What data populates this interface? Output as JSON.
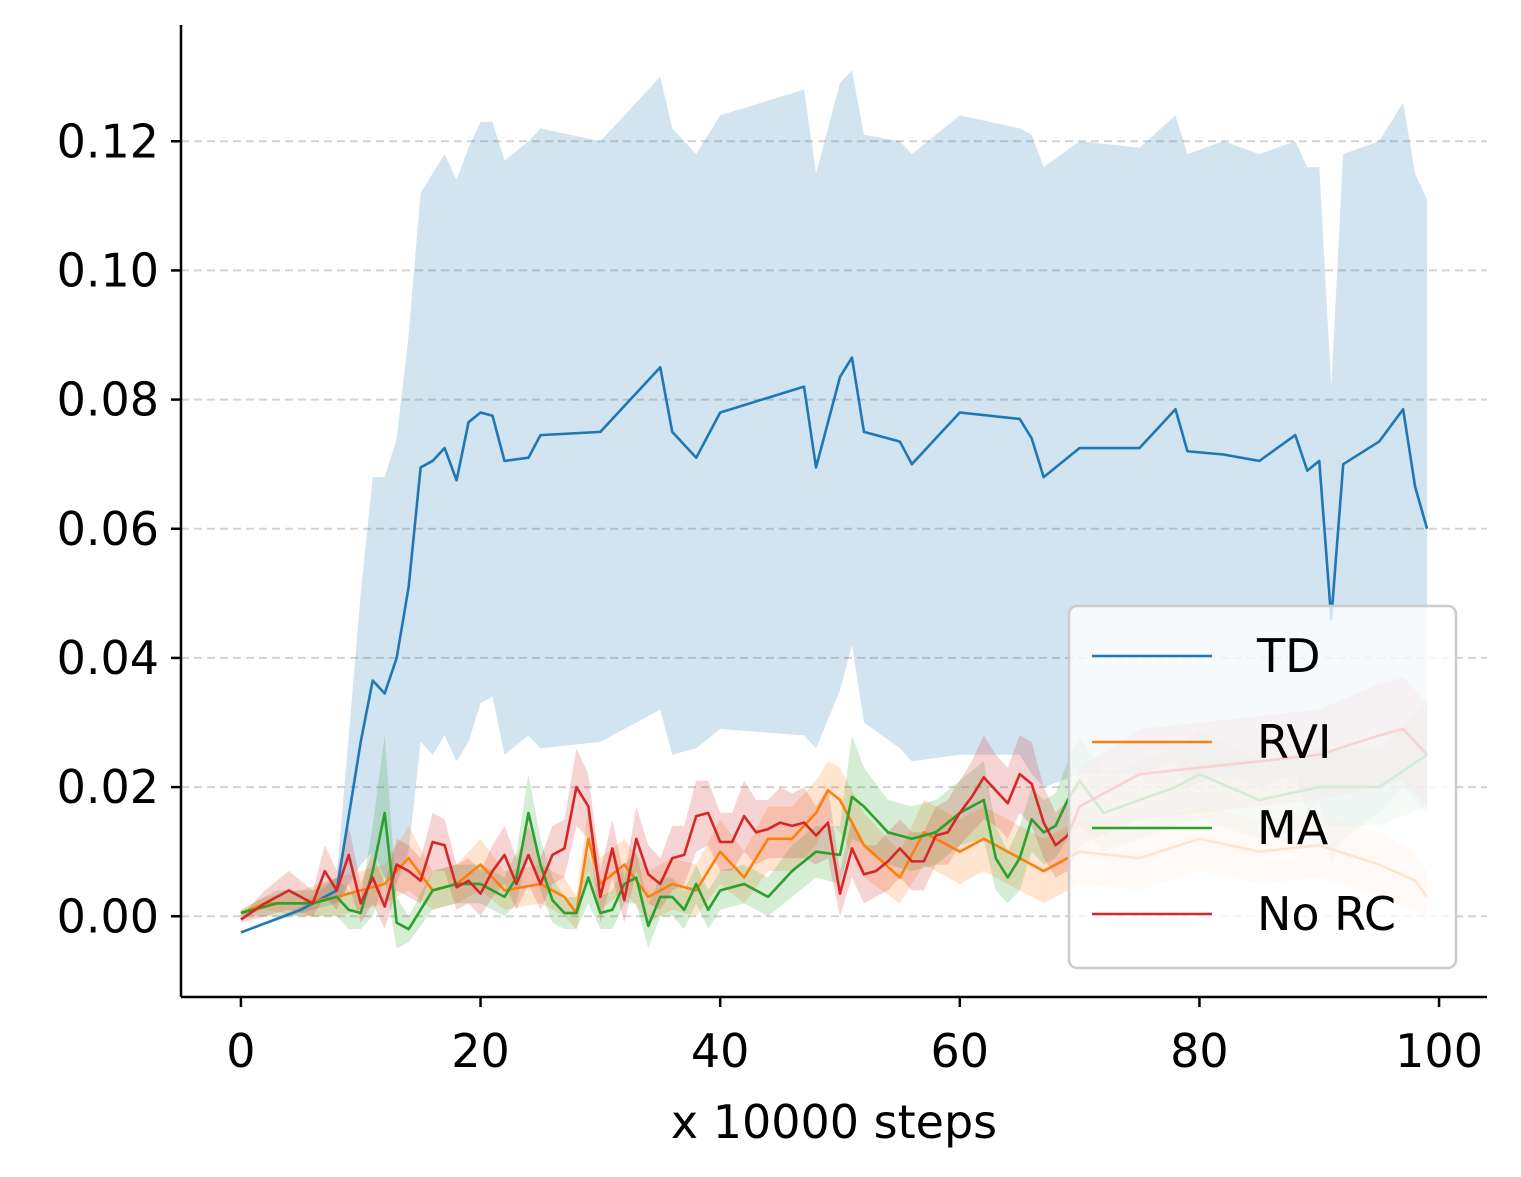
{
  "chart_data": {
    "type": "line",
    "title": "",
    "xlabel": "x 10000 steps",
    "ylabel": "",
    "xlim": [
      -5,
      104
    ],
    "ylim": [
      -0.0125,
      0.138
    ],
    "xticks": [
      0,
      20,
      40,
      60,
      80,
      100
    ],
    "xtick_labels": [
      "0",
      "20",
      "40",
      "60",
      "80",
      "100"
    ],
    "yticks": [
      0,
      0.02,
      0.04,
      0.06,
      0.08,
      0.1,
      0.12
    ],
    "ytick_labels": [
      "0.00",
      "0.02",
      "0.04",
      "0.06",
      "0.08",
      "0.10",
      "0.12"
    ],
    "grid": "horizontal dashed",
    "legend_position": "lower-right",
    "series": [
      {
        "name": "TD",
        "color": "#1f77b4",
        "x": [
          0,
          5,
          8,
          10,
          11,
          12,
          13,
          14,
          15,
          16,
          17,
          18,
          19,
          20,
          21,
          22,
          24,
          25,
          30,
          35,
          36,
          38,
          40,
          47,
          48,
          50,
          51,
          52,
          55,
          56,
          60,
          65,
          66,
          67,
          70,
          75,
          78,
          79,
          82,
          85,
          88,
          89,
          90,
          91,
          92,
          95,
          97,
          98,
          99
        ],
        "values": [
          -0.0025,
          0.001,
          0.004,
          0.027,
          0.0365,
          0.0345,
          0.04,
          0.051,
          0.0695,
          0.0705,
          0.0725,
          0.0675,
          0.0765,
          0.078,
          0.0775,
          0.0705,
          0.071,
          0.0745,
          0.075,
          0.085,
          0.075,
          0.071,
          0.078,
          0.082,
          0.0695,
          0.0835,
          0.0865,
          0.075,
          0.0735,
          0.07,
          0.078,
          0.077,
          0.074,
          0.068,
          0.0725,
          0.0725,
          0.0785,
          0.072,
          0.0715,
          0.0705,
          0.0745,
          0.069,
          0.0705,
          0.046,
          0.07,
          0.0735,
          0.0785,
          0.0665,
          0.06
        ],
        "lower": [
          -0.0025,
          0.0005,
          0.002,
          0.008,
          0.01,
          0.006,
          0.005,
          0.01,
          0.027,
          0.025,
          0.028,
          0.024,
          0.027,
          0.033,
          0.034,
          0.025,
          0.028,
          0.026,
          0.027,
          0.032,
          0.025,
          0.026,
          0.029,
          0.028,
          0.026,
          0.035,
          0.042,
          0.03,
          0.026,
          0.024,
          0.025,
          0.025,
          0.022,
          0.02,
          0.022,
          0.022,
          0.024,
          0.02,
          0.022,
          0.02,
          0.022,
          0.016,
          0.018,
          0.008,
          0.012,
          0.016,
          0.02,
          0.018,
          0.016
        ],
        "upper": [
          -0.0025,
          0.0015,
          0.006,
          0.05,
          0.068,
          0.068,
          0.074,
          0.09,
          0.112,
          0.115,
          0.118,
          0.114,
          0.119,
          0.123,
          0.123,
          0.117,
          0.12,
          0.122,
          0.12,
          0.13,
          0.122,
          0.118,
          0.124,
          0.128,
          0.115,
          0.129,
          0.131,
          0.121,
          0.12,
          0.118,
          0.124,
          0.122,
          0.121,
          0.116,
          0.12,
          0.119,
          0.124,
          0.118,
          0.12,
          0.118,
          0.12,
          0.116,
          0.116,
          0.082,
          0.118,
          0.12,
          0.126,
          0.115,
          0.111
        ]
      },
      {
        "name": "RVI",
        "color": "#ff7f0e",
        "x": [
          0,
          2,
          5,
          8,
          10,
          12,
          14,
          16,
          18,
          20,
          22,
          25,
          27,
          28,
          29,
          30,
          32,
          34,
          36,
          38,
          40,
          42,
          44,
          46,
          48,
          49,
          50,
          52,
          55,
          57,
          60,
          62,
          65,
          67,
          70,
          75,
          80,
          85,
          90,
          95,
          98,
          99
        ],
        "values": [
          0.0005,
          0.002,
          0.002,
          0.003,
          0.004,
          0.005,
          0.009,
          0.004,
          0.005,
          0.008,
          0.004,
          0.005,
          0.003,
          0.0005,
          0.012,
          0.005,
          0.008,
          0.003,
          0.005,
          0.004,
          0.01,
          0.006,
          0.012,
          0.012,
          0.016,
          0.0195,
          0.018,
          0.011,
          0.006,
          0.013,
          0.01,
          0.012,
          0.009,
          0.007,
          0.01,
          0.009,
          0.012,
          0.01,
          0.011,
          0.008,
          0.0055,
          0.003
        ],
        "lower": [
          0.0,
          0.001,
          0.0,
          0.0,
          0.001,
          0.002,
          0.004,
          0.001,
          0.002,
          0.004,
          0.001,
          0.002,
          0.0,
          -0.002,
          0.007,
          0.001,
          0.004,
          -0.001,
          0.001,
          0.0,
          0.005,
          0.002,
          0.007,
          0.007,
          0.011,
          0.015,
          0.013,
          0.006,
          0.002,
          0.008,
          0.005,
          0.007,
          0.004,
          0.002,
          0.005,
          0.004,
          0.007,
          0.005,
          0.006,
          0.003,
          0.001,
          -0.001
        ],
        "upper": [
          0.001,
          0.003,
          0.004,
          0.006,
          0.007,
          0.008,
          0.014,
          0.007,
          0.008,
          0.012,
          0.007,
          0.008,
          0.006,
          0.003,
          0.017,
          0.009,
          0.012,
          0.007,
          0.009,
          0.008,
          0.015,
          0.01,
          0.017,
          0.017,
          0.021,
          0.024,
          0.023,
          0.016,
          0.01,
          0.018,
          0.015,
          0.017,
          0.014,
          0.012,
          0.015,
          0.014,
          0.017,
          0.015,
          0.016,
          0.013,
          0.01,
          0.007
        ]
      },
      {
        "name": "MA",
        "color": "#2ca02c",
        "x": [
          0,
          3,
          6,
          8,
          9,
          10,
          11,
          12,
          13,
          14,
          16,
          18,
          20,
          22,
          23,
          24,
          25,
          26,
          27,
          28,
          29,
          30,
          31,
          32,
          33,
          34,
          35,
          36,
          37,
          38,
          39,
          40,
          42,
          44,
          46,
          48,
          50,
          51,
          52,
          54,
          56,
          58,
          60,
          62,
          63,
          64,
          65,
          66,
          67,
          68,
          69,
          70,
          72,
          75,
          78,
          80,
          85,
          90,
          95,
          99
        ],
        "values": [
          0.0005,
          0.002,
          0.002,
          0.003,
          0.001,
          0.0005,
          0.007,
          0.016,
          -0.001,
          -0.002,
          0.004,
          0.005,
          0.005,
          0.003,
          0.006,
          0.016,
          0.008,
          0.0025,
          0.0005,
          0.0005,
          0.006,
          0.0005,
          0.001,
          0.005,
          0.006,
          -0.0015,
          0.003,
          0.003,
          0.001,
          0.005,
          0.001,
          0.004,
          0.005,
          0.003,
          0.007,
          0.01,
          0.0095,
          0.0185,
          0.017,
          0.013,
          0.012,
          0.013,
          0.016,
          0.018,
          0.009,
          0.006,
          0.009,
          0.015,
          0.013,
          0.014,
          0.018,
          0.021,
          0.016,
          0.018,
          0.02,
          0.022,
          0.018,
          0.02,
          0.02,
          0.025
        ],
        "lower": [
          0.0,
          0.0,
          0.0,
          0.0,
          -0.002,
          -0.002,
          0.0,
          0.006,
          -0.005,
          -0.004,
          0.001,
          0.002,
          0.002,
          0.0,
          0.002,
          0.01,
          0.004,
          -0.001,
          -0.002,
          -0.002,
          0.002,
          -0.002,
          -0.002,
          0.002,
          0.002,
          -0.005,
          0.0,
          0.0,
          -0.002,
          0.002,
          -0.002,
          0.001,
          0.002,
          0.0,
          0.003,
          0.006,
          0.005,
          0.012,
          0.011,
          0.008,
          0.007,
          0.008,
          0.011,
          0.012,
          0.004,
          0.002,
          0.004,
          0.01,
          0.008,
          0.009,
          0.012,
          0.014,
          0.01,
          0.012,
          0.014,
          0.015,
          0.012,
          0.014,
          0.014,
          0.017
        ],
        "upper": [
          0.001,
          0.004,
          0.004,
          0.006,
          0.004,
          0.003,
          0.014,
          0.028,
          0.003,
          0.0,
          0.007,
          0.008,
          0.008,
          0.006,
          0.01,
          0.022,
          0.012,
          0.006,
          0.003,
          0.003,
          0.01,
          0.003,
          0.004,
          0.008,
          0.01,
          0.002,
          0.006,
          0.006,
          0.004,
          0.008,
          0.004,
          0.007,
          0.008,
          0.006,
          0.011,
          0.014,
          0.014,
          0.028,
          0.023,
          0.018,
          0.017,
          0.018,
          0.021,
          0.024,
          0.014,
          0.01,
          0.014,
          0.02,
          0.018,
          0.019,
          0.024,
          0.028,
          0.022,
          0.024,
          0.026,
          0.029,
          0.024,
          0.026,
          0.026,
          0.033
        ]
      },
      {
        "name": "No RC",
        "color": "#d62728",
        "x": [
          0,
          2,
          4,
          6,
          7,
          8,
          9,
          10,
          11,
          12,
          13,
          14,
          15,
          16,
          17,
          18,
          19,
          20,
          21,
          22,
          23,
          24,
          25,
          26,
          27,
          28,
          29,
          30,
          31,
          32,
          33,
          34,
          35,
          36,
          37,
          38,
          39,
          40,
          41,
          42,
          43,
          44,
          45,
          46,
          47,
          48,
          49,
          50,
          51,
          52,
          53,
          54,
          55,
          56,
          57,
          58,
          59,
          60,
          61,
          62,
          63,
          64,
          65,
          66,
          67,
          68,
          69,
          70,
          75,
          80,
          85,
          90,
          95,
          97,
          99
        ],
        "values": [
          -0.0005,
          0.002,
          0.004,
          0.002,
          0.007,
          0.004,
          0.0095,
          0.002,
          0.006,
          0.0015,
          0.008,
          0.007,
          0.0055,
          0.0115,
          0.011,
          0.0045,
          0.0055,
          0.0035,
          0.007,
          0.0095,
          0.005,
          0.0095,
          0.005,
          0.0095,
          0.0105,
          0.02,
          0.017,
          0.003,
          0.0105,
          0.0025,
          0.012,
          0.0065,
          0.005,
          0.009,
          0.0095,
          0.0155,
          0.016,
          0.0115,
          0.0115,
          0.0155,
          0.013,
          0.0135,
          0.0145,
          0.014,
          0.0145,
          0.0125,
          0.0145,
          0.0035,
          0.0105,
          0.0065,
          0.007,
          0.0085,
          0.0105,
          0.0085,
          0.0085,
          0.0125,
          0.013,
          0.016,
          0.0185,
          0.0215,
          0.0195,
          0.0175,
          0.022,
          0.0205,
          0.0145,
          0.011,
          0.0125,
          0.017,
          0.022,
          0.023,
          0.024,
          0.025,
          0.028,
          0.029,
          0.025
        ],
        "lower": [
          -0.001,
          0.0,
          0.001,
          0.0,
          0.003,
          0.001,
          0.005,
          -0.001,
          0.002,
          -0.002,
          0.004,
          0.003,
          0.002,
          0.007,
          0.007,
          0.001,
          0.002,
          0.0,
          0.003,
          0.005,
          0.001,
          0.005,
          0.001,
          0.005,
          0.006,
          0.014,
          0.012,
          -0.001,
          0.006,
          -0.001,
          0.007,
          0.002,
          0.001,
          0.004,
          0.005,
          0.01,
          0.011,
          0.007,
          0.007,
          0.01,
          0.008,
          0.009,
          0.009,
          0.009,
          0.009,
          0.008,
          0.009,
          0.0,
          0.006,
          0.002,
          0.003,
          0.004,
          0.006,
          0.004,
          0.004,
          0.008,
          0.008,
          0.011,
          0.013,
          0.015,
          0.014,
          0.012,
          0.016,
          0.014,
          0.009,
          0.006,
          0.007,
          0.011,
          0.015,
          0.016,
          0.017,
          0.018,
          0.02,
          0.021,
          0.017
        ],
        "upper": [
          0.0,
          0.004,
          0.007,
          0.004,
          0.011,
          0.007,
          0.014,
          0.005,
          0.01,
          0.005,
          0.012,
          0.011,
          0.009,
          0.016,
          0.015,
          0.008,
          0.009,
          0.007,
          0.011,
          0.014,
          0.009,
          0.014,
          0.009,
          0.014,
          0.015,
          0.026,
          0.022,
          0.007,
          0.015,
          0.006,
          0.017,
          0.011,
          0.009,
          0.014,
          0.014,
          0.021,
          0.021,
          0.016,
          0.016,
          0.021,
          0.018,
          0.018,
          0.02,
          0.019,
          0.02,
          0.017,
          0.02,
          0.007,
          0.015,
          0.011,
          0.011,
          0.013,
          0.015,
          0.013,
          0.013,
          0.017,
          0.018,
          0.021,
          0.024,
          0.028,
          0.025,
          0.023,
          0.028,
          0.027,
          0.02,
          0.016,
          0.018,
          0.023,
          0.029,
          0.03,
          0.031,
          0.032,
          0.036,
          0.037,
          0.033
        ]
      }
    ]
  }
}
